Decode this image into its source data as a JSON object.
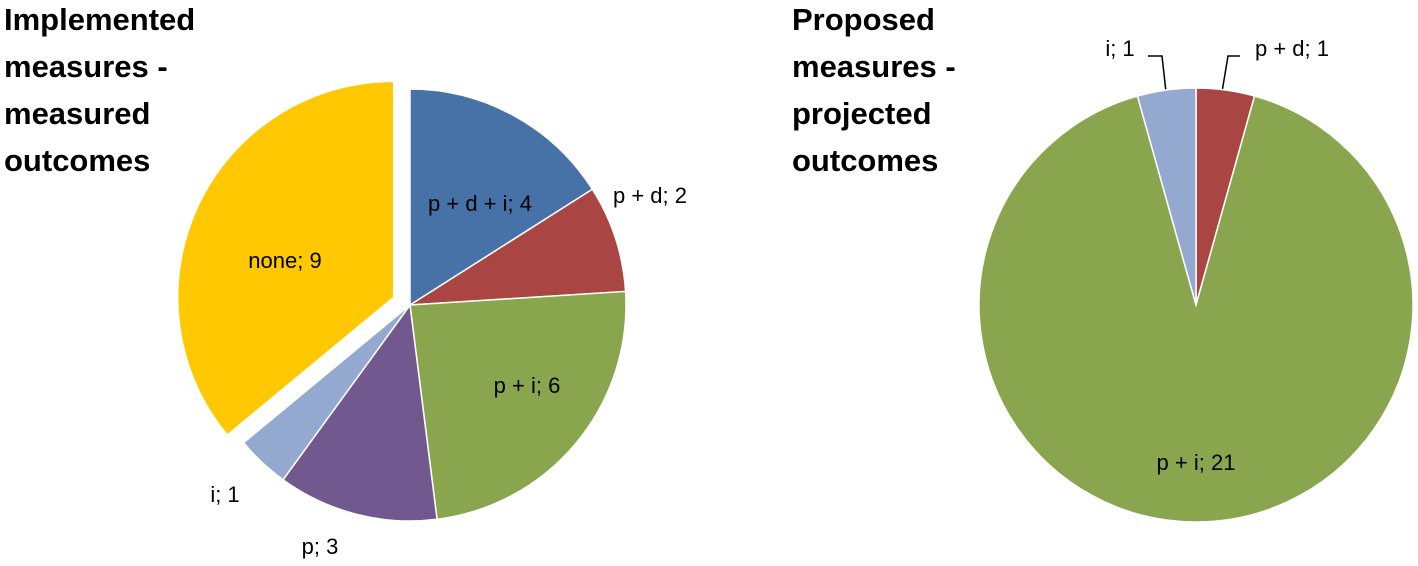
{
  "chart_data": [
    {
      "type": "pie",
      "title": "Implemented measures - measured outcomes",
      "values": [
        4,
        2,
        6,
        3,
        1,
        9
      ],
      "value_labels": [
        "p + d + i; 4",
        "p + d; 2",
        "p + i; 6",
        "p; 3",
        "i; 1",
        "none; 9"
      ],
      "colors": [
        "#4672a8",
        "#a94543",
        "#89a54e",
        "#71588f",
        "#93a9cf",
        "#ffc800"
      ]
    },
    {
      "type": "pie",
      "title": "Proposed measures - projected outcomes",
      "values": [
        1,
        21,
        1
      ],
      "value_labels": [
        "p + d; 1",
        "p + i; 21",
        "i; 1"
      ],
      "colors": [
        "#a94543",
        "#89a54e",
        "#93a9cf"
      ]
    }
  ]
}
